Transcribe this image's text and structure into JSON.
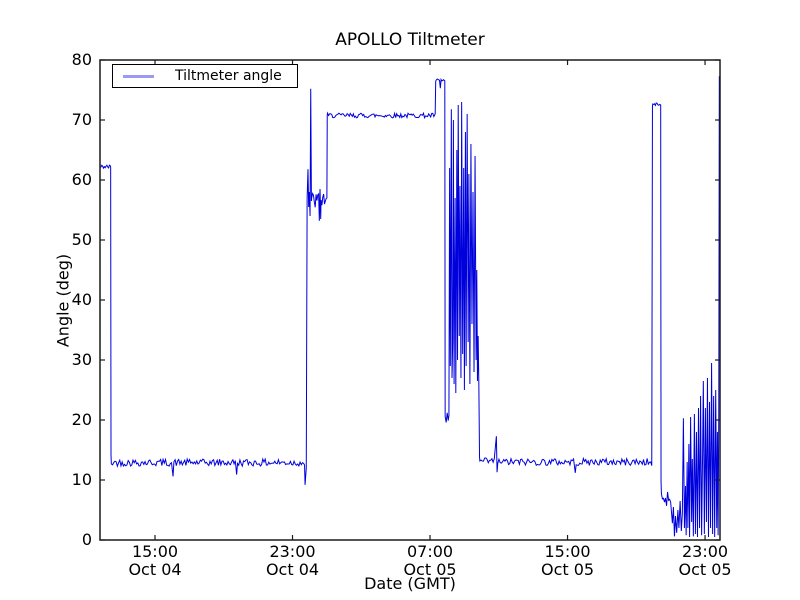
{
  "chart_data": {
    "type": "line",
    "title": "APOLLO Tiltmeter",
    "xlabel": "Date (GMT)",
    "ylabel": "Angle (deg)",
    "ylim": [
      0,
      80
    ],
    "yticks": [
      0,
      10,
      20,
      30,
      40,
      50,
      60,
      70,
      80
    ],
    "xlim_hours": [
      0,
      36.07
    ],
    "xticks": [
      {
        "h": 3.2,
        "time": "15:00",
        "date": "Oct 04"
      },
      {
        "h": 11.2,
        "time": "23:00",
        "date": "Oct 04"
      },
      {
        "h": 19.2,
        "time": "07:00",
        "date": "Oct 05"
      },
      {
        "h": 27.2,
        "time": "15:00",
        "date": "Oct 05"
      },
      {
        "h": 35.2,
        "time": "23:00",
        "date": "Oct 05"
      }
    ],
    "grid": false,
    "legend": {
      "label": "Tiltmeter angle",
      "position": "upper left"
    },
    "line_color": "#0000dd",
    "legend_sample_color": "#9a9af2",
    "axis_color": "#1a1a1a",
    "seed": 42,
    "series": [
      {
        "name": "Tiltmeter angle",
        "segments": [
          {
            "mode": "noise",
            "h": [
              0.0,
              0.6
            ],
            "base": 62.2,
            "amp": 0.35,
            "step": 0.05
          },
          {
            "mode": "pts",
            "pts": [
              [
                0.62,
                62.1
              ],
              [
                0.64,
                14.2
              ]
            ]
          },
          {
            "mode": "noise",
            "h": [
              0.66,
              4.2
            ],
            "base": 12.9,
            "amp": 0.6,
            "step": 0.07
          },
          {
            "mode": "pts",
            "pts": [
              [
                4.25,
                10.6
              ]
            ]
          },
          {
            "mode": "noise",
            "h": [
              4.3,
              7.9
            ],
            "base": 12.9,
            "amp": 0.6,
            "step": 0.07
          },
          {
            "mode": "pts",
            "pts": [
              [
                7.95,
                10.9
              ]
            ]
          },
          {
            "mode": "noise",
            "h": [
              8.0,
              11.85
            ],
            "base": 12.9,
            "amp": 0.6,
            "step": 0.07
          },
          {
            "mode": "pts",
            "pts": [
              [
                11.9,
                12.5
              ],
              [
                11.93,
                9.2
              ],
              [
                12.0,
                12.0
              ],
              [
                12.05,
                57.0
              ],
              [
                12.1,
                61.8
              ],
              [
                12.14,
                55.5
              ],
              [
                12.18,
                58.0
              ],
              [
                12.22,
                54.0
              ],
              [
                12.26,
                75.2
              ],
              [
                12.3,
                56.5
              ]
            ]
          },
          {
            "mode": "noise",
            "h": [
              12.32,
              12.72
            ],
            "base": 56.5,
            "amp": 1.5,
            "step": 0.05
          },
          {
            "mode": "pts",
            "pts": [
              [
                12.76,
                53.2
              ],
              [
                12.8,
                58.5
              ],
              [
                12.84,
                53.5
              ]
            ]
          },
          {
            "mode": "noise",
            "h": [
              12.86,
              13.18
            ],
            "base": 56.8,
            "amp": 1.4,
            "step": 0.05
          },
          {
            "mode": "pts",
            "pts": [
              [
                13.2,
                57.0
              ],
              [
                13.22,
                70.8
              ]
            ]
          },
          {
            "mode": "noise",
            "h": [
              13.24,
              19.46
            ],
            "base": 70.75,
            "amp": 0.4,
            "step": 0.06
          },
          {
            "mode": "pts",
            "pts": [
              [
                19.5,
                71.0
              ],
              [
                19.53,
                76.4
              ]
            ]
          },
          {
            "mode": "noise",
            "h": [
              19.55,
              19.76
            ],
            "base": 76.6,
            "amp": 0.25,
            "step": 0.05
          },
          {
            "mode": "pts",
            "pts": [
              [
                19.8,
                75.3
              ]
            ]
          },
          {
            "mode": "noise",
            "h": [
              19.84,
              20.02
            ],
            "base": 76.6,
            "amp": 0.25,
            "step": 0.05
          },
          {
            "mode": "pts",
            "pts": [
              [
                20.06,
                76.5
              ],
              [
                20.08,
                20.6
              ],
              [
                20.14,
                19.6
              ],
              [
                20.2,
                21.2
              ],
              [
                20.26,
                19.9
              ],
              [
                20.3,
                20.8
              ]
            ]
          },
          {
            "mode": "pts",
            "pts": [
              [
                20.34,
                62.0
              ],
              [
                20.38,
                29.0
              ],
              [
                20.44,
                71.8
              ],
              [
                20.48,
                27.0
              ],
              [
                20.52,
                33.0
              ],
              [
                20.56,
                70.0
              ],
              [
                20.6,
                26.0
              ],
              [
                20.66,
                57.0
              ],
              [
                20.7,
                24.5
              ],
              [
                20.76,
                65.0
              ],
              [
                20.8,
                30.0
              ],
              [
                20.84,
                72.5
              ],
              [
                20.9,
                34.0
              ],
              [
                20.94,
                59.0
              ],
              [
                21.0,
                27.0
              ],
              [
                21.04,
                73.0
              ],
              [
                21.1,
                31.0
              ],
              [
                21.16,
                62.0
              ],
              [
                21.2,
                25.0
              ],
              [
                21.26,
                68.0
              ],
              [
                21.3,
                29.0
              ],
              [
                21.36,
                71.0
              ],
              [
                21.42,
                33.0
              ],
              [
                21.46,
                61.0
              ],
              [
                21.52,
                26.0
              ],
              [
                21.58,
                66.0
              ],
              [
                21.64,
                36.0
              ],
              [
                21.7,
                58.0
              ],
              [
                21.76,
                28.0
              ],
              [
                21.82,
                64.0
              ],
              [
                21.88,
                30.0
              ],
              [
                21.92,
                45.0
              ],
              [
                21.96,
                26.5
              ],
              [
                22.0,
                34.0
              ],
              [
                22.04,
                26.0
              ]
            ]
          },
          {
            "mode": "pts",
            "pts": [
              [
                22.08,
                13.8
              ]
            ]
          },
          {
            "mode": "noise",
            "h": [
              22.1,
              23.0
            ],
            "base": 13.1,
            "amp": 0.6,
            "step": 0.07
          },
          {
            "mode": "pts",
            "pts": [
              [
                23.06,
                17.3
              ],
              [
                23.1,
                11.3
              ]
            ]
          },
          {
            "mode": "noise",
            "h": [
              23.14,
              27.6
            ],
            "base": 13.0,
            "amp": 0.6,
            "step": 0.07
          },
          {
            "mode": "pts",
            "pts": [
              [
                27.65,
                11.2
              ]
            ]
          },
          {
            "mode": "noise",
            "h": [
              27.7,
              32.05
            ],
            "base": 13.0,
            "amp": 0.6,
            "step": 0.07
          },
          {
            "mode": "pts",
            "pts": [
              [
                32.1,
                12.4
              ],
              [
                32.14,
                72.3
              ]
            ]
          },
          {
            "mode": "noise",
            "h": [
              32.16,
              32.58
            ],
            "base": 72.6,
            "amp": 0.25,
            "step": 0.05
          },
          {
            "mode": "pts",
            "pts": [
              [
                32.62,
                72.5
              ],
              [
                32.64,
                9.8
              ]
            ]
          },
          {
            "mode": "noise",
            "h": [
              32.66,
              33.25
            ],
            "base": 7.0,
            "amp": 1.4,
            "step": 0.06
          },
          {
            "mode": "pts",
            "pts": [
              [
                33.3,
                2.8
              ],
              [
                33.36,
                5.5
              ],
              [
                33.42,
                0.6
              ],
              [
                33.48,
                4.0
              ],
              [
                33.55,
                1.2
              ],
              [
                33.62,
                5.0
              ],
              [
                33.68,
                2.0
              ],
              [
                33.75,
                6.5
              ],
              [
                33.82,
                1.5
              ],
              [
                33.88,
                4.5
              ],
              [
                33.94,
                20.3
              ],
              [
                34.0,
                2.0
              ]
            ]
          },
          {
            "mode": "pts",
            "pts": [
              [
                34.06,
                9.0
              ],
              [
                34.1,
                0.8
              ],
              [
                34.16,
                13.0
              ],
              [
                34.2,
                2.0
              ],
              [
                34.26,
                16.0
              ],
              [
                34.3,
                0.5
              ],
              [
                34.36,
                20.5
              ],
              [
                34.42,
                3.0
              ],
              [
                34.46,
                13.5
              ],
              [
                34.52,
                0.6
              ],
              [
                34.58,
                21.0
              ],
              [
                34.64,
                1.0
              ],
              [
                34.7,
                18.0
              ],
              [
                34.76,
                0.5
              ],
              [
                34.82,
                22.0
              ],
              [
                34.88,
                2.0
              ],
              [
                34.94,
                24.0
              ],
              [
                35.0,
                0.8
              ],
              [
                35.06,
                15.0
              ],
              [
                35.1,
                26.5
              ],
              [
                35.16,
                1.0
              ],
              [
                35.22,
                22.0
              ],
              [
                35.28,
                3.0
              ],
              [
                35.34,
                27.0
              ],
              [
                35.4,
                0.5
              ],
              [
                35.46,
                23.0
              ],
              [
                35.52,
                2.0
              ],
              [
                35.58,
                29.5
              ],
              [
                35.64,
                1.0
              ],
              [
                35.7,
                24.0
              ],
              [
                35.76,
                0.5
              ],
              [
                35.82,
                25.0
              ],
              [
                35.88,
                2.0
              ],
              [
                35.92,
                18.0
              ],
              [
                35.96,
                0.8
              ],
              [
                36.0,
                22.0
              ],
              [
                36.03,
                77.3
              ],
              [
                36.06,
                75.0
              ]
            ]
          }
        ]
      }
    ]
  }
}
